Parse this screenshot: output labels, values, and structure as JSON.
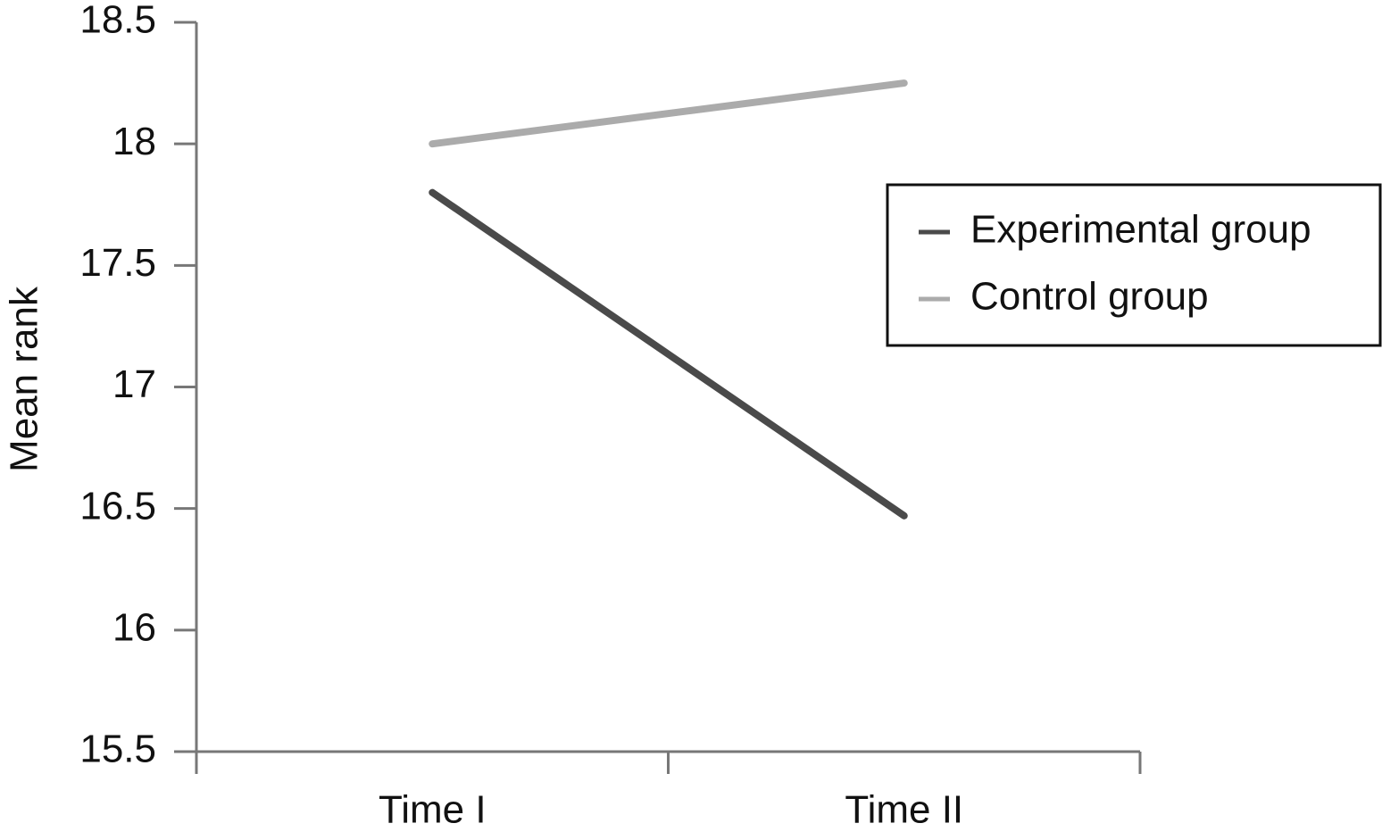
{
  "chart_data": {
    "type": "line",
    "y_label": "Mean rank",
    "categories": [
      "Time I",
      "Time II"
    ],
    "series": [
      {
        "name": "Experimental group",
        "color": "#4a4a4a",
        "values": [
          17.8,
          16.47
        ]
      },
      {
        "name": "Control group",
        "color": "#ababab",
        "values": [
          18.0,
          18.25
        ]
      }
    ],
    "ylim": [
      15.5,
      18.5
    ],
    "yticks": [
      15.5,
      16,
      16.5,
      17,
      17.5,
      18,
      18.5
    ],
    "grid": false,
    "legend": "right"
  }
}
